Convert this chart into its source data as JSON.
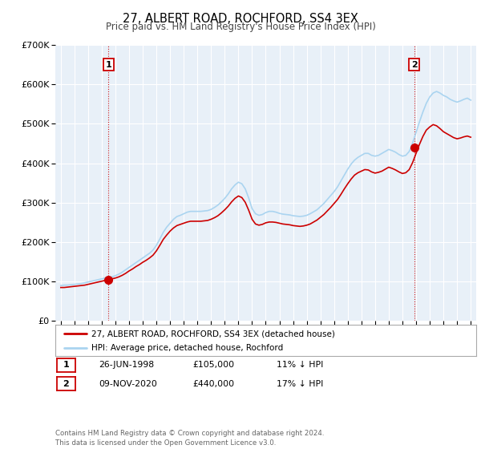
{
  "title": "27, ALBERT ROAD, ROCHFORD, SS4 3EX",
  "subtitle": "Price paid vs. HM Land Registry's House Price Index (HPI)",
  "ylim": [
    0,
    700000
  ],
  "yticks": [
    0,
    100000,
    200000,
    300000,
    400000,
    500000,
    600000,
    700000
  ],
  "ytick_labels": [
    "£0",
    "£100K",
    "£200K",
    "£300K",
    "£400K",
    "£500K",
    "£600K",
    "£700K"
  ],
  "hpi_color": "#aad4f0",
  "price_color": "#cc0000",
  "dashed_color": "#cc0000",
  "marker1_date": 1998.49,
  "marker1_value": 105000,
  "marker2_date": 2020.86,
  "marker2_value": 440000,
  "annotation1": "1",
  "annotation2": "2",
  "legend_label1": "27, ALBERT ROAD, ROCHFORD, SS4 3EX (detached house)",
  "legend_label2": "HPI: Average price, detached house, Rochford",
  "table_row1": [
    "1",
    "26-JUN-1998",
    "£105,000",
    "11% ↓ HPI"
  ],
  "table_row2": [
    "2",
    "09-NOV-2020",
    "£440,000",
    "17% ↓ HPI"
  ],
  "footnote": "Contains HM Land Registry data © Crown copyright and database right 2024.\nThis data is licensed under the Open Government Licence v3.0.",
  "background_color": "#ffffff",
  "grid_color": "#cccccc",
  "plot_bg": "#e8f0f8"
}
